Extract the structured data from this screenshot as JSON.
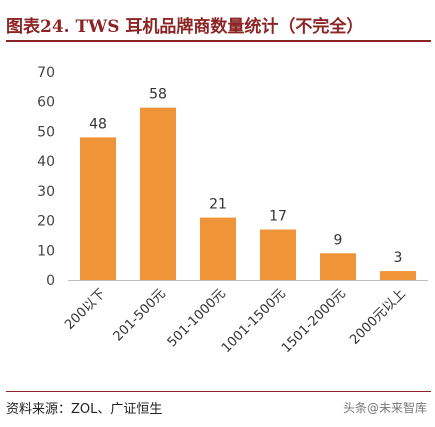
{
  "title": "图表24. TWS 耳机品牌商数量统计（不完全）",
  "source": "资料来源：ZOL、广证恒生",
  "watermark": "头条@未来智库",
  "chart_data": {
    "type": "bar",
    "categories": [
      "200以下",
      "201-500元",
      "501-1000元",
      "1001-1500元",
      "1501-2000元",
      "2000元以上"
    ],
    "values": [
      48,
      58,
      21,
      17,
      9,
      3
    ],
    "ylim": [
      0,
      70
    ],
    "yticks": [
      0,
      10,
      20,
      30,
      40,
      50,
      60,
      70
    ],
    "bar_color": "#f0943a",
    "grid": false,
    "data_labels": true
  }
}
